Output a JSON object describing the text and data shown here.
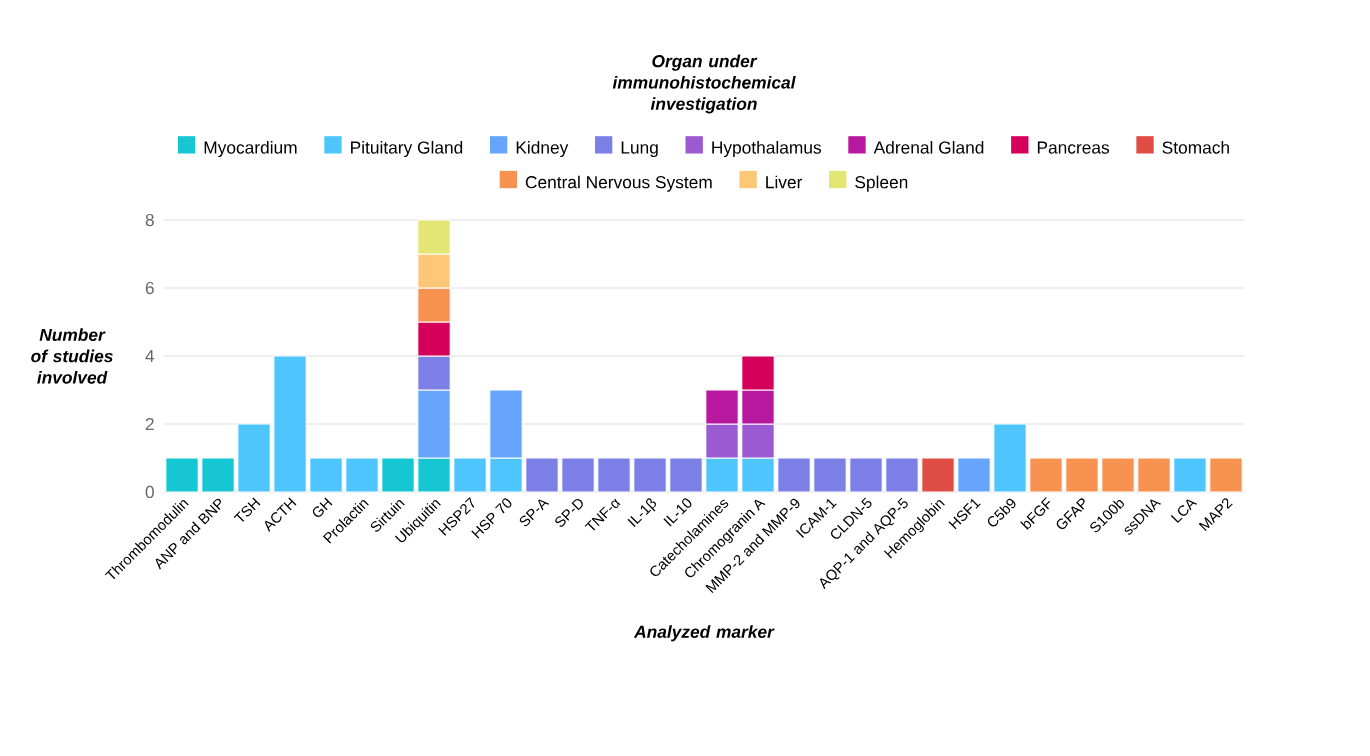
{
  "chart_data": {
    "type": "bar",
    "stacked": true,
    "legend_title": "Organ under immunohistochemical investigation",
    "xlabel": "Analyzed marker",
    "ylabel": "Number of studies involved",
    "categories": [
      "Thrombomodulin",
      "ANP and BNP",
      "TSH",
      "ACTH",
      "GH",
      "Prolactin",
      "Sirtuin",
      "Ubiquitin",
      "HSP27",
      "HSP 70",
      "SP-A",
      "SP-D",
      "TNF-α",
      "IL-1β",
      "IL-10",
      "Catecholamines",
      "Chromogranin A",
      "MMP-2 and MMP-9",
      "ICAM-1",
      "CLDN-5",
      "AQP-1 and AQP-5",
      "Hemoglobin",
      "HSF1",
      "C5b9",
      "bFGF",
      "GFAP",
      "S100b",
      "ssDNA",
      "LCA",
      "MAP2"
    ],
    "series": [
      {
        "name": "Myocardium",
        "color": "#17c6d3",
        "values": [
          1,
          1,
          null,
          null,
          null,
          null,
          1,
          1,
          null,
          null,
          null,
          null,
          null,
          null,
          null,
          null,
          null,
          null,
          null,
          null,
          null,
          null,
          null,
          null,
          null,
          null,
          null,
          null,
          null,
          null
        ]
      },
      {
        "name": "Pituitary Gland",
        "color": "#4ec6fd",
        "values": [
          null,
          null,
          2,
          4,
          1,
          1,
          null,
          null,
          1,
          1,
          null,
          null,
          null,
          null,
          null,
          1,
          1,
          null,
          null,
          null,
          null,
          null,
          null,
          2,
          null,
          null,
          null,
          null,
          1,
          null
        ]
      },
      {
        "name": "Kidney",
        "color": "#67a4fb",
        "values": [
          null,
          null,
          null,
          null,
          null,
          null,
          null,
          2,
          null,
          2,
          null,
          null,
          null,
          null,
          null,
          null,
          null,
          null,
          null,
          null,
          null,
          null,
          1,
          null,
          null,
          null,
          null,
          null,
          null,
          null
        ]
      },
      {
        "name": "Lung",
        "color": "#7b7fe6",
        "values": [
          null,
          null,
          null,
          null,
          null,
          null,
          null,
          1,
          null,
          null,
          1,
          1,
          1,
          1,
          1,
          null,
          null,
          1,
          1,
          1,
          1,
          null,
          null,
          null,
          null,
          null,
          null,
          null,
          null,
          null
        ]
      },
      {
        "name": "Hypothalamus",
        "color": "#9b59d2",
        "values": [
          null,
          null,
          null,
          null,
          null,
          null,
          null,
          null,
          null,
          null,
          null,
          null,
          null,
          null,
          null,
          1,
          1,
          null,
          null,
          null,
          null,
          null,
          null,
          null,
          null,
          null,
          null,
          null,
          null,
          null
        ]
      },
      {
        "name": "Adrenal Gland",
        "color": "#b8179f",
        "values": [
          null,
          null,
          null,
          null,
          null,
          null,
          null,
          null,
          null,
          null,
          null,
          null,
          null,
          null,
          null,
          1,
          1,
          null,
          null,
          null,
          null,
          null,
          null,
          null,
          null,
          null,
          null,
          null,
          null,
          null
        ]
      },
      {
        "name": "Pancreas",
        "color": "#d4005a",
        "values": [
          null,
          null,
          null,
          null,
          null,
          null,
          null,
          1,
          null,
          null,
          null,
          null,
          null,
          null,
          null,
          null,
          1,
          null,
          null,
          null,
          null,
          null,
          null,
          null,
          null,
          null,
          null,
          null,
          null,
          null
        ]
      },
      {
        "name": "Stomach",
        "color": "#e04d45",
        "values": [
          null,
          null,
          null,
          null,
          null,
          null,
          null,
          null,
          null,
          null,
          null,
          null,
          null,
          null,
          null,
          null,
          null,
          null,
          null,
          null,
          null,
          1,
          null,
          null,
          null,
          null,
          null,
          null,
          null,
          null
        ]
      },
      {
        "name": "Central Nervous System",
        "color": "#f79250",
        "values": [
          null,
          null,
          null,
          null,
          null,
          null,
          null,
          1,
          null,
          null,
          null,
          null,
          null,
          null,
          null,
          null,
          null,
          null,
          null,
          null,
          null,
          null,
          null,
          null,
          1,
          1,
          1,
          1,
          null,
          1
        ]
      },
      {
        "name": "Liver",
        "color": "#fcc878",
        "values": [
          null,
          null,
          null,
          null,
          null,
          null,
          null,
          1,
          null,
          null,
          null,
          null,
          null,
          null,
          null,
          null,
          null,
          null,
          null,
          null,
          null,
          null,
          null,
          null,
          null,
          null,
          null,
          null,
          null,
          null
        ]
      },
      {
        "name": "Spleen",
        "color": "#e4e673",
        "values": [
          null,
          null,
          null,
          null,
          null,
          null,
          null,
          1,
          null,
          null,
          null,
          null,
          null,
          null,
          null,
          null,
          null,
          null,
          null,
          null,
          null,
          null,
          null,
          null,
          null,
          null,
          null,
          null,
          null,
          null
        ]
      }
    ],
    "ylim": [
      0,
      8
    ],
    "yticks": [
      0,
      2,
      4,
      6,
      8
    ],
    "grid": "y",
    "legend": "top"
  }
}
